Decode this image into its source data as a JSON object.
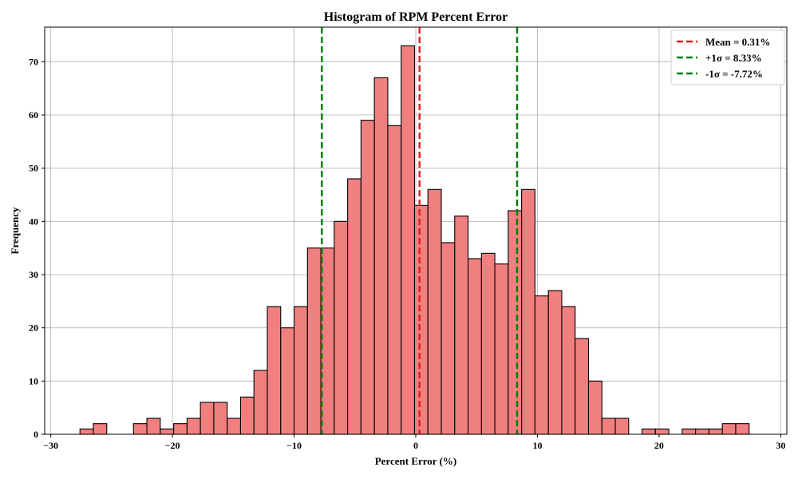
{
  "chart_data": {
    "type": "bar",
    "title": "Histogram of RPM Percent Error",
    "xlabel": "Percent Error (%)",
    "ylabel": "Frequency",
    "xlim": [
      -30.5,
      30.5
    ],
    "ylim": [
      0,
      76.5
    ],
    "x_ticks": [
      -30,
      -20,
      -10,
      0,
      10,
      20,
      30
    ],
    "x_tick_labels": [
      "−30",
      "−20",
      "−10",
      "0",
      "10",
      "20",
      "30"
    ],
    "y_ticks": [
      0,
      10,
      20,
      30,
      40,
      50,
      60,
      70
    ],
    "y_tick_labels": [
      "0",
      "10",
      "20",
      "30",
      "40",
      "50",
      "60",
      "70"
    ],
    "grid": true,
    "legend_position": "top-right",
    "bar_color": "#f08080",
    "bar_edge_color": "#000000",
    "bins": {
      "start": -27.6,
      "width": 1.1,
      "counts": [
        1,
        2,
        0,
        0,
        2,
        3,
        1,
        2,
        3,
        6,
        6,
        3,
        7,
        12,
        24,
        20,
        24,
        35,
        35,
        40,
        48,
        59,
        67,
        58,
        73,
        43,
        46,
        36,
        41,
        33,
        34,
        32,
        42,
        46,
        26,
        27,
        24,
        18,
        10,
        3,
        3,
        0,
        1,
        1,
        0,
        1,
        1,
        1,
        2,
        2
      ]
    },
    "reference_lines": [
      {
        "label": "Mean = 0.31%",
        "x": 0.31,
        "color": "#e41a1c"
      },
      {
        "label": "+1σ = 8.33%",
        "x": 8.33,
        "color": "#008000"
      },
      {
        "label": "-1σ = -7.72%",
        "x": -7.72,
        "color": "#008000"
      }
    ]
  }
}
